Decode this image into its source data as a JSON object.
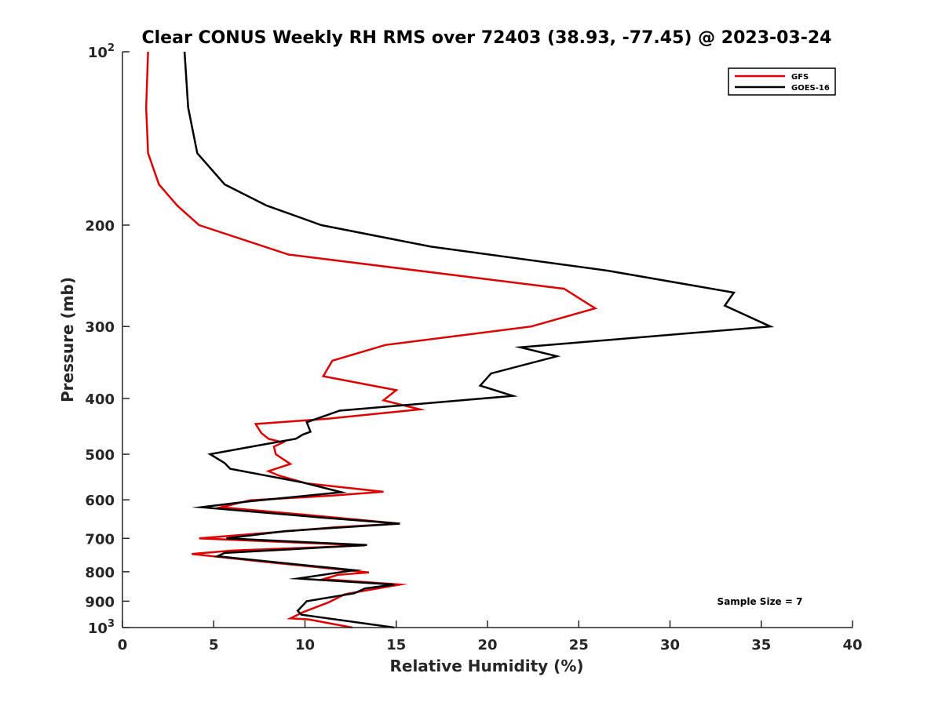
{
  "chart_data": {
    "type": "line",
    "title": "Clear CONUS Weekly RH RMS over 72403 (38.93, -77.45) @ 2023-03-24",
    "xlabel": "Relative Humidity (%)",
    "ylabel": "Pressure (mb)",
    "xlim": [
      0,
      40
    ],
    "ylim": [
      100,
      1000
    ],
    "y_scale": "log",
    "y_reversed": true,
    "x_ticks": [
      0,
      5,
      10,
      15,
      20,
      25,
      30,
      35,
      40
    ],
    "y_ticks": [
      {
        "value": 100,
        "base": "10",
        "exp": "2"
      },
      {
        "value": 200,
        "label": "200"
      },
      {
        "value": 300,
        "label": "300"
      },
      {
        "value": 400,
        "label": "400"
      },
      {
        "value": 500,
        "label": "500"
      },
      {
        "value": 600,
        "label": "600"
      },
      {
        "value": 700,
        "label": "700"
      },
      {
        "value": 800,
        "label": "800"
      },
      {
        "value": 900,
        "label": "900"
      },
      {
        "value": 1000,
        "base": "10",
        "exp": "3"
      }
    ],
    "grid": false,
    "legend_position": "top-right",
    "annotation": "Sample Size = 7",
    "series": [
      {
        "name": "GFS",
        "color": "#e00000",
        "points": [
          [
            1.4,
            100
          ],
          [
            1.3,
            125
          ],
          [
            1.4,
            150
          ],
          [
            2.0,
            170
          ],
          [
            3.0,
            185
          ],
          [
            4.2,
            200
          ],
          [
            9.1,
            225
          ],
          [
            24.2,
            258
          ],
          [
            25.9,
            279
          ],
          [
            22.4,
            300
          ],
          [
            14.4,
            323
          ],
          [
            11.5,
            344
          ],
          [
            11.0,
            366
          ],
          [
            15.0,
            387
          ],
          [
            14.3,
            403
          ],
          [
            16.3,
            418
          ],
          [
            11.2,
            434
          ],
          [
            7.3,
            443
          ],
          [
            7.6,
            459
          ],
          [
            8.0,
            470
          ],
          [
            8.8,
            477
          ],
          [
            8.3,
            485
          ],
          [
            8.4,
            500
          ],
          [
            9.2,
            520
          ],
          [
            8.0,
            535
          ],
          [
            8.6,
            545
          ],
          [
            10.1,
            562
          ],
          [
            14.3,
            581
          ],
          [
            11.5,
            590
          ],
          [
            7.0,
            601
          ],
          [
            5.4,
            618
          ],
          [
            10.5,
            639
          ],
          [
            15.2,
            660
          ],
          [
            11.6,
            670
          ],
          [
            4.2,
            700
          ],
          [
            13.3,
            720
          ],
          [
            6.0,
            735
          ],
          [
            3.8,
            745
          ],
          [
            8.0,
            770
          ],
          [
            13.5,
            802
          ],
          [
            11.8,
            810
          ],
          [
            11.0,
            824
          ],
          [
            15.2,
            842
          ],
          [
            12.2,
            875
          ],
          [
            11.3,
            904
          ],
          [
            9.9,
            940
          ],
          [
            9.2,
            964
          ],
          [
            10.2,
            968
          ],
          [
            12.6,
            1000
          ]
        ]
      },
      {
        "name": "GOES-16",
        "color": "#000000",
        "points": [
          [
            3.4,
            100
          ],
          [
            3.6,
            125
          ],
          [
            4.1,
            150
          ],
          [
            5.6,
            170
          ],
          [
            7.9,
            185
          ],
          [
            10.9,
            200
          ],
          [
            16.9,
            218
          ],
          [
            26.6,
            240
          ],
          [
            33.5,
            262
          ],
          [
            33.0,
            276
          ],
          [
            35.5,
            300
          ],
          [
            21.8,
            326
          ],
          [
            23.8,
            338
          ],
          [
            20.2,
            362
          ],
          [
            19.6,
            380
          ],
          [
            21.4,
            396
          ],
          [
            11.9,
            420
          ],
          [
            10.1,
            440
          ],
          [
            10.3,
            457
          ],
          [
            9.9,
            462
          ],
          [
            9.5,
            470
          ],
          [
            7.4,
            483
          ],
          [
            4.8,
            500
          ],
          [
            5.6,
            518
          ],
          [
            5.9,
            530
          ],
          [
            9.9,
            560
          ],
          [
            12.0,
            582
          ],
          [
            6.9,
            604
          ],
          [
            4.3,
            618
          ],
          [
            10.9,
            644
          ],
          [
            15.2,
            660
          ],
          [
            8.9,
            680
          ],
          [
            5.7,
            700
          ],
          [
            13.4,
            719
          ],
          [
            5.6,
            742
          ],
          [
            5.2,
            752
          ],
          [
            12.7,
            795
          ],
          [
            9.6,
            822
          ],
          [
            14.9,
            842
          ],
          [
            13.3,
            855
          ],
          [
            12.7,
            872
          ],
          [
            10.1,
            900
          ],
          [
            9.6,
            935
          ],
          [
            9.8,
            950
          ],
          [
            14.9,
            1000
          ]
        ]
      }
    ]
  }
}
